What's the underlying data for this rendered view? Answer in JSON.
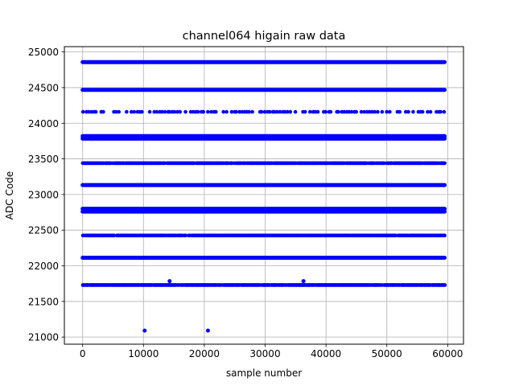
{
  "chart_data": {
    "type": "scatter",
    "title": "channel064 higain raw data",
    "xlabel": "sample number",
    "ylabel": "ADC Code",
    "xlim": [
      -3000,
      62600
    ],
    "ylim": [
      20900,
      25075
    ],
    "xticks": [
      0,
      10000,
      20000,
      30000,
      40000,
      50000,
      60000
    ],
    "yticks": [
      21000,
      21500,
      22000,
      22500,
      23000,
      23500,
      24000,
      24500,
      25000
    ],
    "grid": true,
    "marker_color": "#0000ff",
    "x_range": [
      0,
      59500
    ],
    "bands": [
      {
        "y": 24858,
        "density": "solid"
      },
      {
        "y": 24468,
        "density": "solid"
      },
      {
        "y": 24160,
        "density": "sparse"
      },
      {
        "y": 23820,
        "density": "solid"
      },
      {
        "y": 23785,
        "density": "solid"
      },
      {
        "y": 23440,
        "density": "medium"
      },
      {
        "y": 23133,
        "density": "solid"
      },
      {
        "y": 22800,
        "density": "solid"
      },
      {
        "y": 22760,
        "density": "solid"
      },
      {
        "y": 22425,
        "density": "medium"
      },
      {
        "y": 22113,
        "density": "solid"
      },
      {
        "y": 21730,
        "density": "medium"
      }
    ],
    "outliers": [
      {
        "x": 10200,
        "y": 21090
      },
      {
        "x": 20600,
        "y": 21090
      },
      {
        "x": 14300,
        "y": 21785
      },
      {
        "x": 36300,
        "y": 21785
      }
    ]
  }
}
